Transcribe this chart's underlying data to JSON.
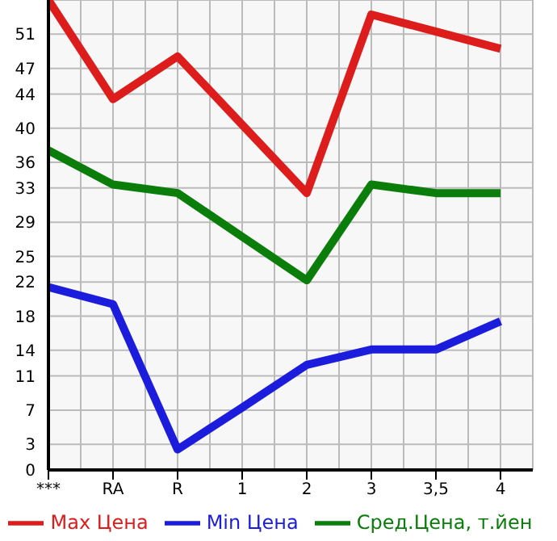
{
  "chart_data": {
    "type": "line",
    "categories": [
      "***",
      "RA",
      "R",
      "1",
      "2",
      "3",
      "3,5",
      "4"
    ],
    "series": [
      {
        "name": "Max Цена",
        "color": "#dd1c1c",
        "values": [
          55,
          43.4,
          48.4,
          40.4,
          32.4,
          53.3,
          51.3,
          49.3
        ]
      },
      {
        "name": "Min Цена",
        "color": "#1c1cdd",
        "values": [
          21.4,
          19.4,
          2.4,
          7.3,
          12.3,
          14.1,
          14.1,
          17.4
        ]
      },
      {
        "name": "Сред.Цена, т.йен",
        "color": "#0a7d0a",
        "values": [
          37.4,
          33.4,
          32.4,
          27.3,
          22.2,
          33.4,
          32.4,
          32.4
        ]
      }
    ],
    "ylim": [
      0,
      55
    ],
    "yticks": [
      0,
      3,
      7,
      11,
      14,
      18,
      22,
      25,
      29,
      33,
      36,
      40,
      44,
      47,
      51
    ],
    "grid": true,
    "legend": "bottom",
    "marker": "none",
    "line_style": "solid"
  }
}
